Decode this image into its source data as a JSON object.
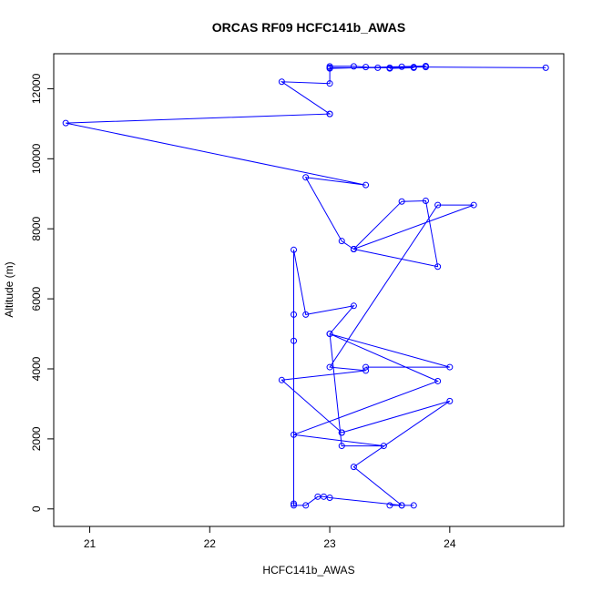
{
  "chart_data": {
    "type": "line",
    "title": "ORCAS RF09 HCFC141b_AWAS",
    "xlabel": "HCFC141b_AWAS",
    "ylabel": "Altitude (m)",
    "xlim": [
      20.7,
      24.95
    ],
    "ylim": [
      -500,
      13000
    ],
    "xticks": [
      21,
      22,
      23,
      24
    ],
    "yticks": [
      0,
      2000,
      4000,
      6000,
      8000,
      10000,
      12000
    ],
    "colors": {
      "series": "#0000ff",
      "axes": "#000000"
    },
    "markers": "open-circle",
    "grid": false,
    "series": [
      {
        "x": [
          24.8,
          23.8,
          23.7,
          23.6,
          23.5,
          23.4,
          23.3,
          23.2,
          23.0,
          23.0,
          23.7,
          23.5,
          23.8,
          23.0,
          23.0,
          22.6,
          23.0,
          23.0,
          20.8,
          23.3,
          22.8,
          23.1,
          23.2,
          23.2,
          23.9,
          23.8,
          23.6,
          23.2,
          24.2,
          23.9,
          23.0,
          23.3,
          22.6,
          23.1,
          23.1,
          24.0,
          23.2,
          23.6,
          23.5,
          23.7,
          23.6,
          23.0,
          22.95,
          22.9,
          22.8,
          22.7,
          22.7,
          22.7,
          22.7,
          22.7,
          22.8,
          23.2,
          23.0,
          23.1,
          23.45,
          22.7,
          23.9,
          23.0,
          24.0,
          23.3
        ],
        "y": [
          12600,
          12620,
          12620,
          12630,
          12600,
          12600,
          12620,
          12640,
          12640,
          12600,
          12600,
          12580,
          12650,
          12580,
          12150,
          12200,
          11280,
          11280,
          11020,
          9250,
          9470,
          7650,
          7420,
          7420,
          6920,
          8800,
          8780,
          7420,
          8680,
          8680,
          4050,
          3950,
          3680,
          2180,
          2180,
          3080,
          1200,
          100,
          100,
          100,
          100,
          320,
          350,
          350,
          100,
          100,
          150,
          4800,
          5550,
          7400,
          5550,
          5800,
          5000,
          1800,
          1800,
          2120,
          3650,
          5000,
          4050,
          4050
        ]
      }
    ]
  }
}
